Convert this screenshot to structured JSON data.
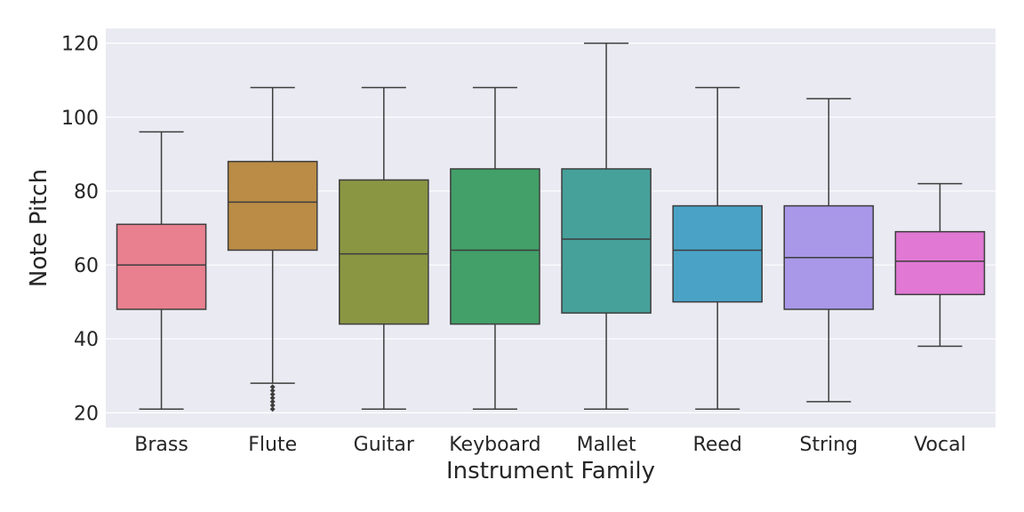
{
  "chart_data": {
    "type": "box",
    "xlabel": "Instrument Family",
    "ylabel": "Note Pitch",
    "ylim": [
      16,
      124
    ],
    "yticks": [
      20,
      40,
      60,
      80,
      100,
      120
    ],
    "grid": true,
    "background": "#eaeaf2",
    "categories": [
      "Brass",
      "Flute",
      "Guitar",
      "Keyboard",
      "Mallet",
      "Reed",
      "String",
      "Vocal"
    ],
    "boxes": [
      {
        "category": "Brass",
        "whisker_low": 21,
        "q1": 48,
        "median": 60,
        "q3": 71,
        "whisker_high": 96,
        "color": "#e8808f",
        "outliers": []
      },
      {
        "category": "Flute",
        "whisker_low": 28,
        "q1": 64,
        "median": 77,
        "q3": 88,
        "whisker_high": 108,
        "color": "#ba8c46",
        "outliers": [
          21,
          22,
          23,
          24,
          25,
          26,
          27
        ]
      },
      {
        "category": "Guitar",
        "whisker_low": 21,
        "q1": 44,
        "median": 63,
        "q3": 83,
        "whisker_high": 108,
        "color": "#8a9642",
        "outliers": []
      },
      {
        "category": "Keyboard",
        "whisker_low": 21,
        "q1": 44,
        "median": 64,
        "q3": 86,
        "whisker_high": 108,
        "color": "#42a068",
        "outliers": []
      },
      {
        "category": "Mallet",
        "whisker_low": 21,
        "q1": 47,
        "median": 67,
        "q3": 86,
        "whisker_high": 120,
        "color": "#45a19a",
        "outliers": []
      },
      {
        "category": "Reed",
        "whisker_low": 21,
        "q1": 50,
        "median": 64,
        "q3": 76,
        "whisker_high": 108,
        "color": "#4aa3c6",
        "outliers": []
      },
      {
        "category": "String",
        "whisker_low": 23,
        "q1": 48,
        "median": 62,
        "q3": 76,
        "whisker_high": 105,
        "color": "#a997e8",
        "outliers": []
      },
      {
        "category": "Vocal",
        "whisker_low": 38,
        "q1": 52,
        "median": 61,
        "q3": 69,
        "whisker_high": 82,
        "color": "#e078d4",
        "outliers": []
      }
    ]
  }
}
